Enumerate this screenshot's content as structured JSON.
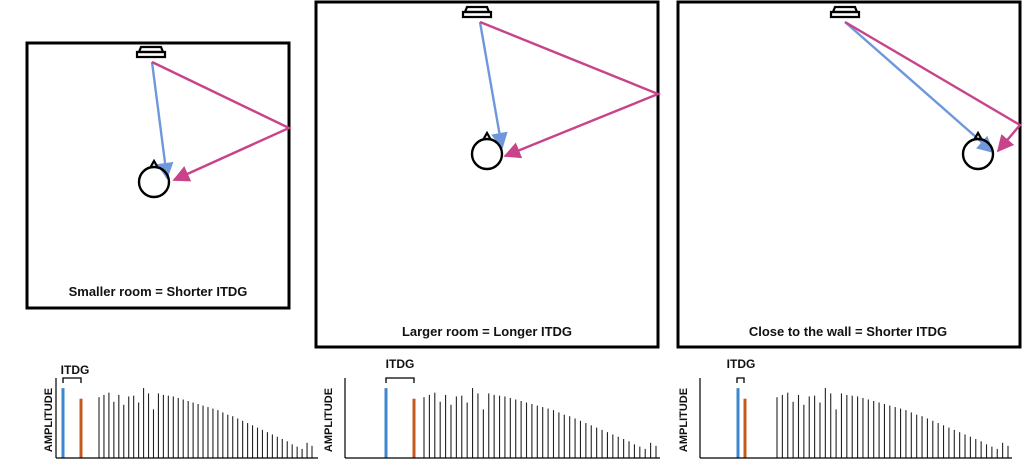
{
  "colors": {
    "direct": "#6f98dc",
    "reflection": "#c8438a",
    "direct_impulse": "#3d87cf",
    "first_reflection_impulse": "#c55a1f",
    "reverb": "#222222",
    "frame": "#000000"
  },
  "icons": {
    "speaker": "speaker-icon",
    "listener": "listener-head-icon"
  },
  "panels": [
    {
      "caption": "Smaller room = Shorter ITDG",
      "itdg_label": "ITDG",
      "amplitude_label": "AMPLITUDE",
      "reverb_levels": [
        0.8,
        0.83,
        0.86,
        0.74,
        0.83,
        0.7,
        0.81,
        0.82,
        0.73,
        0.92,
        0.85,
        0.64,
        0.85,
        0.83,
        0.82,
        0.81,
        0.79,
        0.77,
        0.75,
        0.73,
        0.71,
        0.69,
        0.67,
        0.65,
        0.63,
        0.6,
        0.57,
        0.55,
        0.52,
        0.49,
        0.46,
        0.43,
        0.4,
        0.37,
        0.34,
        0.31,
        0.28,
        0.25,
        0.22,
        0.18,
        0.15,
        0.12,
        0.2,
        0.16
      ]
    },
    {
      "caption": "Larger room = Longer ITDG",
      "itdg_label": "ITDG",
      "amplitude_label": "AMPLITUDE",
      "reverb_levels": [
        0.8,
        0.83,
        0.86,
        0.74,
        0.83,
        0.7,
        0.81,
        0.82,
        0.73,
        0.92,
        0.85,
        0.64,
        0.85,
        0.83,
        0.82,
        0.81,
        0.79,
        0.77,
        0.75,
        0.73,
        0.71,
        0.69,
        0.67,
        0.65,
        0.63,
        0.6,
        0.57,
        0.55,
        0.52,
        0.49,
        0.46,
        0.43,
        0.4,
        0.37,
        0.34,
        0.31,
        0.28,
        0.25,
        0.22,
        0.18,
        0.15,
        0.12,
        0.2,
        0.16
      ]
    },
    {
      "caption": "Close to the wall = Shorter ITDG",
      "itdg_label": "ITDG",
      "amplitude_label": "AMPLITUDE",
      "reverb_levels": [
        0.8,
        0.83,
        0.86,
        0.74,
        0.83,
        0.7,
        0.81,
        0.82,
        0.73,
        0.92,
        0.85,
        0.64,
        0.85,
        0.83,
        0.82,
        0.81,
        0.79,
        0.77,
        0.75,
        0.73,
        0.71,
        0.69,
        0.67,
        0.65,
        0.63,
        0.6,
        0.57,
        0.55,
        0.52,
        0.49,
        0.46,
        0.43,
        0.4,
        0.37,
        0.34,
        0.31,
        0.28,
        0.25,
        0.22,
        0.18,
        0.15,
        0.12,
        0.2,
        0.16
      ]
    }
  ]
}
